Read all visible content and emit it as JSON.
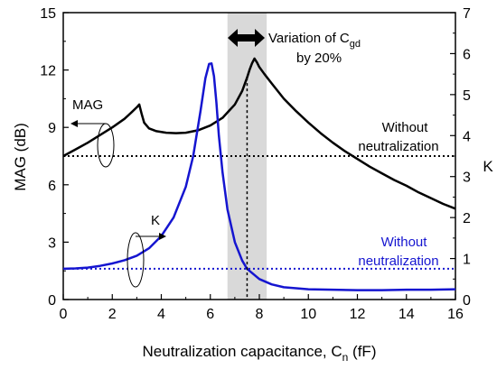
{
  "chart_data": {
    "type": "line",
    "xlabel": {
      "main": "Neutralization capacitance, C",
      "sub": "n",
      "unit": " (fF)"
    },
    "ylabel_left": "MAG (dB)",
    "ylabel_right": "K",
    "xlim": [
      0,
      16
    ],
    "ylim_left": [
      0,
      15
    ],
    "ylim_right": [
      0,
      7
    ],
    "x_ticks": [
      "0",
      "2",
      "4",
      "6",
      "8",
      "10",
      "12",
      "14",
      "16"
    ],
    "y_left_ticks": [
      "0",
      "3",
      "6",
      "9",
      "12",
      "15"
    ],
    "y_right_ticks": [
      "0",
      "1",
      "2",
      "3",
      "4",
      "5",
      "6",
      "7"
    ],
    "highlight_band": {
      "x_from": 6.7,
      "x_to": 8.3,
      "color": "#d9d9d9"
    },
    "vertical_marker": {
      "x": 7.5,
      "style": "dotted"
    },
    "series": [
      {
        "name": "MAG",
        "axis": "left",
        "color": "#000000",
        "x": [
          0,
          0.5,
          1,
          1.5,
          2,
          2.5,
          2.8,
          3.0,
          3.1,
          3.2,
          3.3,
          3.5,
          3.8,
          4.2,
          4.6,
          5.0,
          5.5,
          6.0,
          6.5,
          7.0,
          7.3,
          7.5,
          7.6,
          7.7,
          7.8,
          7.9,
          8.0,
          8.2,
          8.5,
          9,
          9.5,
          10,
          10.5,
          11,
          11.5,
          12,
          12.5,
          13,
          13.5,
          14,
          14.5,
          15,
          15.5,
          16
        ],
        "values": [
          7.5,
          7.85,
          8.2,
          8.6,
          9.0,
          9.45,
          9.8,
          10.05,
          10.2,
          9.7,
          9.25,
          8.95,
          8.8,
          8.72,
          8.7,
          8.72,
          8.85,
          9.1,
          9.5,
          10.2,
          10.9,
          11.6,
          12.0,
          12.35,
          12.6,
          12.4,
          12.15,
          11.8,
          11.3,
          10.5,
          9.85,
          9.25,
          8.7,
          8.2,
          7.75,
          7.35,
          6.95,
          6.6,
          6.25,
          5.95,
          5.6,
          5.3,
          5.0,
          4.75
        ]
      },
      {
        "name": "K",
        "axis": "right",
        "color": "#1515d0",
        "x": [
          0,
          0.5,
          1,
          1.5,
          2,
          2.5,
          3,
          3.5,
          4,
          4.5,
          5,
          5.3,
          5.6,
          5.8,
          5.95,
          6.05,
          6.15,
          6.25,
          6.35,
          6.5,
          6.7,
          7,
          7.3,
          7.5,
          8,
          8.5,
          9,
          10,
          11,
          12,
          13,
          14,
          15,
          16
        ],
        "values": [
          0.75,
          0.76,
          0.78,
          0.82,
          0.88,
          0.96,
          1.07,
          1.25,
          1.55,
          2.0,
          2.75,
          3.5,
          4.6,
          5.4,
          5.75,
          5.76,
          5.45,
          4.8,
          4.0,
          3.1,
          2.2,
          1.4,
          0.95,
          0.75,
          0.5,
          0.37,
          0.3,
          0.25,
          0.24,
          0.23,
          0.23,
          0.24,
          0.24,
          0.25
        ]
      }
    ],
    "reference_lines": [
      {
        "axis": "left",
        "value": 7.5,
        "color": "#000000",
        "style": "dotted"
      },
      {
        "axis": "right",
        "value": 0.75,
        "color": "#1515d0",
        "style": "dotted"
      }
    ],
    "annotations": {
      "variation_text": "Variation of C",
      "variation_sub": "gd",
      "variation_line2": "by 20%",
      "without_black_1": "Without",
      "without_black_2": "neutralization",
      "without_blue_1": "Without",
      "without_blue_2": "neutralization",
      "mag_label": "MAG",
      "k_label": "K"
    }
  }
}
